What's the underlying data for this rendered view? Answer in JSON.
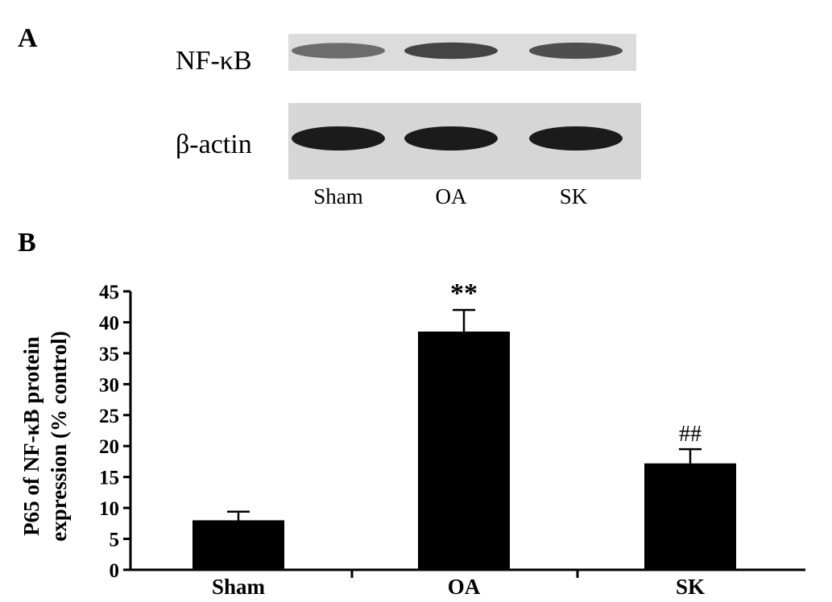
{
  "panels": {
    "a_label": "A",
    "b_label": "B"
  },
  "blot": {
    "rows": [
      {
        "label": "NF-κB"
      },
      {
        "label": "β-actin"
      }
    ],
    "lanes": [
      "Sham",
      "OA",
      "SK"
    ],
    "band_intensity": {
      "NF-κB": [
        0.55,
        0.75,
        0.7
      ],
      "β-actin": [
        0.95,
        0.95,
        0.95
      ]
    },
    "background_color": "#d9d9d9",
    "band_color": "#111111"
  },
  "chart_data": {
    "type": "bar",
    "categories": [
      "Sham",
      "OA",
      "SK"
    ],
    "values": [
      8,
      38.5,
      17.2
    ],
    "error": [
      1.4,
      3.5,
      2.3
    ],
    "annotations": [
      "",
      "**",
      "##"
    ],
    "ylabel_line1": "P65 of NF-κB protein",
    "ylabel_line2": "expression (% control)",
    "ylim": [
      0,
      45
    ],
    "yticks": [
      0,
      5,
      10,
      15,
      20,
      25,
      30,
      35,
      40,
      45
    ],
    "bar_color": "#000000",
    "grid": false
  }
}
